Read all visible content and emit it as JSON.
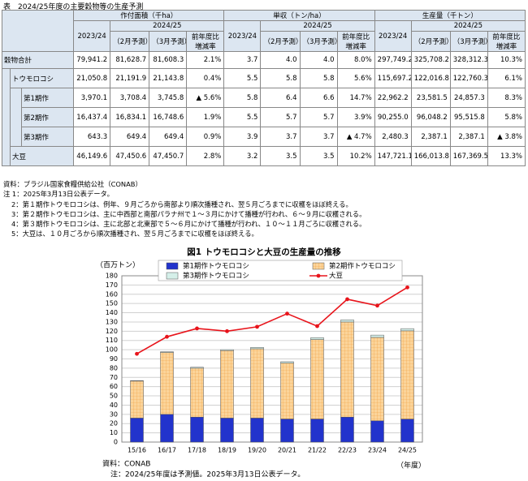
{
  "table": {
    "title": "表　2024/25年度の主要穀物等の生産予測",
    "groups": [
      "作付面積（千ha）",
      "単収（トン/ha）",
      "生産量（千トン）"
    ],
    "years": [
      "2023/24",
      "2024/25"
    ],
    "subheaders": [
      "（2月予測）",
      "（3月予測）",
      "前年度比増減率"
    ],
    "rows": [
      {
        "label": "穀物合計",
        "cells": [
          "79,941.2",
          "81,628.7",
          "81,608.3",
          "2.1%",
          "3.7",
          "4.0",
          "4.0",
          "8.0%",
          "297,749.2",
          "325,708.2",
          "328,312.3",
          "10.3%"
        ]
      },
      {
        "label": "トウモロコシ",
        "cells": [
          "21,050.8",
          "21,191.9",
          "21,143.8",
          "0.4%",
          "5.5",
          "5.8",
          "5.8",
          "5.6%",
          "115,697.2",
          "122,016.8",
          "122,760.3",
          "6.1%"
        ]
      },
      {
        "label": "第1期作",
        "cells": [
          "3,970.1",
          "3,708.4",
          "3,745.8",
          "▲ 5.6%",
          "5.8",
          "6.4",
          "6.6",
          "14.7%",
          "22,962.2",
          "23,581.5",
          "24,857.3",
          "8.3%"
        ]
      },
      {
        "label": "第2期作",
        "cells": [
          "16,437.4",
          "16,834.1",
          "16,748.6",
          "1.9%",
          "5.5",
          "5.7",
          "5.7",
          "3.9%",
          "90,255.0",
          "96,048.2",
          "95,515.8",
          "5.8%"
        ]
      },
      {
        "label": "第3期作",
        "cells": [
          "643.3",
          "649.4",
          "649.4",
          "0.9%",
          "3.9",
          "3.7",
          "3.7",
          "▲ 4.7%",
          "2,480.3",
          "2,387.1",
          "2,387.1",
          "▲ 3.8%"
        ]
      },
      {
        "label": "大豆",
        "cells": [
          "46,149.6",
          "47,450.6",
          "47,450.7",
          "2.8%",
          "3.2",
          "3.5",
          "3.5",
          "10.2%",
          "147,721.1",
          "166,013.8",
          "167,369.5",
          "13.3%"
        ]
      }
    ]
  },
  "notes": {
    "source": "資料：ブラジル国家食糧供給公社（CONAB）",
    "items": [
      "注 1：2025年3月13日公表データ。",
      "2：第１期作トウモロコシは、例年、９月ごろから南部より順次播種され、翌５月ごろまでに収穫をほぼ終える。",
      "3：第２期作トウモロコシは、主に中西部と南部パラナ州で１～３月にかけて播種が行われ、６～９月に収穫される。",
      "4：第３期作トウモロコシは、主に北部と北東部で５～６月にかけて播種が行われ、１０～１１月ごろに収穫される。",
      "5：大豆は、１０月ごろから順次播種され、翌５月ごろまでに収穫をほぼ終える。"
    ]
  },
  "chart_data": {
    "type": "bar",
    "stacked": true,
    "title": "図1 トウモロコシと大豆の生産量の推移",
    "y_label": "（百万トン）",
    "x_label": "（年度）",
    "categories": [
      "15/16",
      "16/17",
      "17/18",
      "18/19",
      "19/20",
      "20/21",
      "21/22",
      "22/23",
      "23/24",
      "24/25"
    ],
    "series": [
      {
        "name": "第1期作トウモロコシ",
        "color": "#2233cc",
        "values": [
          26,
          30,
          27,
          26,
          26,
          25,
          25,
          27,
          23,
          24.9
        ]
      },
      {
        "name": "第2期作トウモロコシ",
        "color": "#fbd49a",
        "values": [
          40,
          67,
          53,
          73,
          75,
          60.5,
          86,
          103,
          90.3,
          95.5
        ]
      },
      {
        "name": "第3期作トウモロコシ",
        "color": "#d5efe9",
        "values": [
          0.5,
          0.8,
          1,
          1,
          1.5,
          1.5,
          2,
          2.3,
          2.5,
          2.4
        ]
      },
      {
        "name": "大豆",
        "type": "line",
        "color": "#e8141b",
        "values": [
          95.5,
          114,
          123,
          120,
          124.8,
          139,
          125.5,
          154.6,
          147.7,
          167.4
        ]
      }
    ],
    "ylim": [
      0,
      180
    ],
    "yticks": [
      0,
      10,
      20,
      30,
      40,
      50,
      60,
      70,
      80,
      90,
      100,
      110,
      120,
      130,
      140,
      150,
      160,
      170,
      180
    ],
    "grid": true,
    "legend": "top",
    "source": "資料：CONAB",
    "note": "注：2024/25年度は予測値。2025年3月13日公表データ。"
  }
}
